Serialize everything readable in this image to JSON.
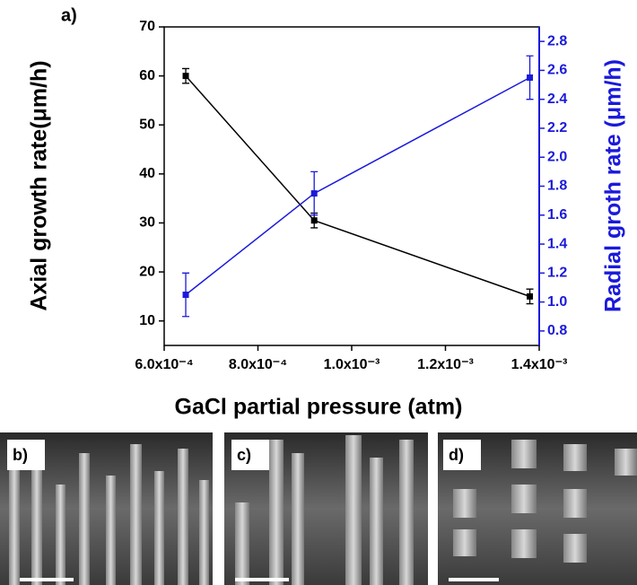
{
  "chart_data": {
    "type": "line",
    "panel_label": "a)",
    "xlabel": "GaCl partial pressure (atm)",
    "ylabel": "Axial growth rate(μm/h)",
    "y2label": "Radial groth rate (μm/h)",
    "x": [
      0.000646,
      0.00092,
      0.00138
    ],
    "xlim": [
      0.0006,
      0.0014
    ],
    "xticks": [
      {
        "value": 0.0006,
        "label": "6.0x10⁻⁴"
      },
      {
        "value": 0.0008,
        "label": "8.0x10⁻⁴"
      },
      {
        "value": 0.001,
        "label": "1.0x10⁻³"
      },
      {
        "value": 0.0012,
        "label": "1.2x10⁻³"
      },
      {
        "value": 0.0014,
        "label": "1.4x10⁻³"
      }
    ],
    "ylim": [
      5,
      70
    ],
    "yticks": [
      10,
      20,
      30,
      40,
      50,
      60,
      70
    ],
    "y2lim": [
      0.7,
      2.9
    ],
    "y2ticks": [
      0.8,
      {
        "value": 1,
        "label": "1.0"
      },
      1.2,
      1.4,
      1.6,
      1.8,
      {
        "value": 2,
        "label": "2.0"
      },
      2.2,
      2.4,
      2.6,
      2.8
    ],
    "series": [
      {
        "color": "#000000",
        "values": [
          60,
          30.5,
          15
        ],
        "errors": [
          1.5,
          1.5,
          1.5
        ]
      },
      {
        "color": "#1a1adb",
        "axis": "y2",
        "values": [
          1.05,
          1.75,
          2.55
        ],
        "errors": [
          0.15,
          0.15,
          0.15
        ]
      }
    ]
  },
  "panels": [
    {
      "label": "b)"
    },
    {
      "label": "c)"
    },
    {
      "label": "d)"
    }
  ]
}
